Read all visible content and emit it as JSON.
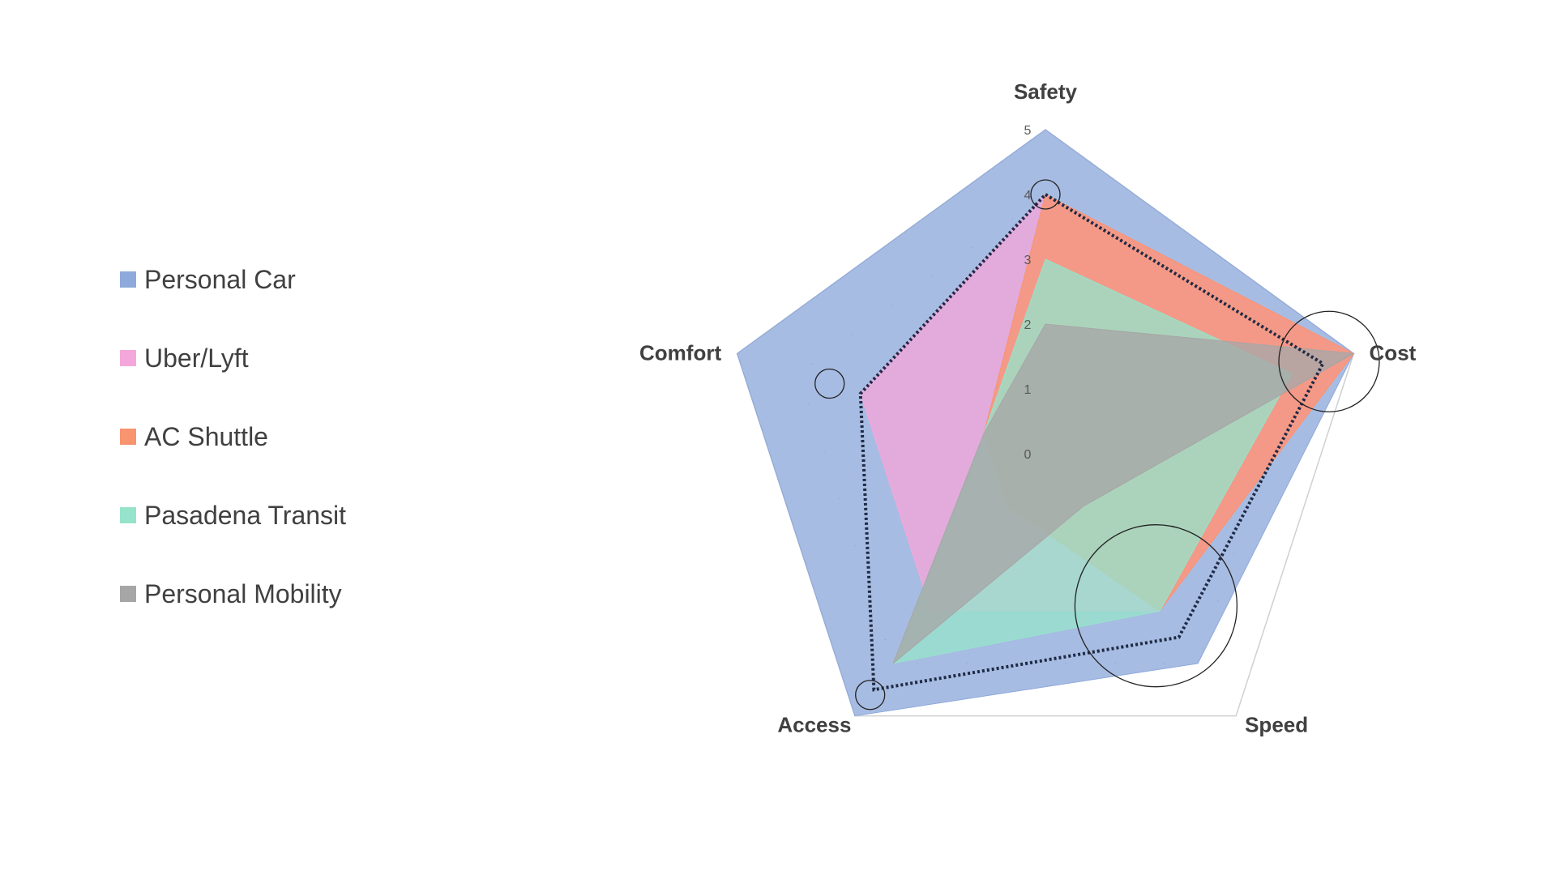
{
  "chart_data": {
    "type": "radar",
    "axes": [
      "Safety",
      "Cost",
      "Speed",
      "Access",
      "Comfort"
    ],
    "r_ticks": [
      "0",
      "1",
      "2",
      "3",
      "4",
      "5"
    ],
    "rlim": [
      0,
      5
    ],
    "legend_position": "left",
    "series": [
      {
        "name": "Personal Car",
        "color": "#8EA9DB",
        "values": [
          5,
          5,
          4,
          5,
          5
        ]
      },
      {
        "name": "Uber/Lyft",
        "color": "#F4A7DA",
        "values": [
          4,
          5,
          3,
          3,
          3
        ]
      },
      {
        "name": "AC Shuttle",
        "color": "#F8946F",
        "values": [
          4,
          5,
          3,
          1,
          1
        ]
      },
      {
        "name": "Pasadena Transit",
        "color": "#96E3CB",
        "values": [
          3,
          4,
          3,
          4,
          1
        ]
      },
      {
        "name": "Personal Mobility",
        "color": "#A6A6A6",
        "values": [
          2,
          5,
          1,
          4,
          1
        ]
      }
    ],
    "average_line": {
      "values": [
        4,
        4.5,
        3.5,
        4.5,
        3
      ],
      "color": "#1F2A44"
    },
    "highlight_circles": [
      {
        "axis": "Safety",
        "value": 4,
        "size": "small"
      },
      {
        "axis": "Cost",
        "value": 4.6,
        "size": "medium"
      },
      {
        "axis": "Speed",
        "value": 2.9,
        "size": "large"
      },
      {
        "axis": "Access",
        "value": 4.6,
        "size": "small"
      },
      {
        "axis": "Comfort",
        "value": 3.5,
        "size": "small"
      }
    ]
  }
}
